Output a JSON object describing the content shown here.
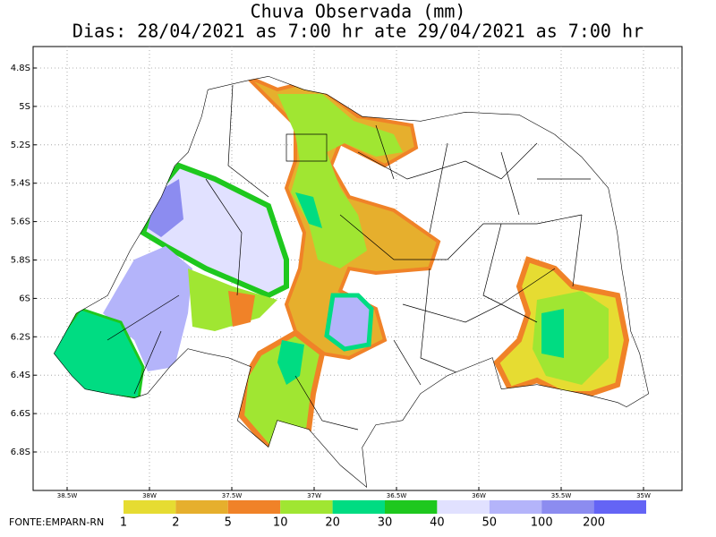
{
  "title": "Chuva Observada (mm)",
  "subtitle": "Dias: 28/04/2021 as 7:00 hr ate 29/04/2021 as 7:00 hr",
  "lat_labels": [
    "4.8S",
    "5S",
    "5.2S",
    "5.4S",
    "5.6S",
    "5.8S",
    "6S",
    "6.2S",
    "6.4S",
    "6.6S",
    "6.8S"
  ],
  "lon_labels": [
    "38.5W",
    "38W",
    "37.5W",
    "37W",
    "36.5W",
    "36W",
    "35.5W",
    "35W"
  ],
  "legend": {
    "labels": [
      "1",
      "2",
      "5",
      "10",
      "20",
      "30",
      "40",
      "50",
      "100",
      "200"
    ],
    "colors": [
      "#e6dc32",
      "#e6af2d",
      "#f08228",
      "#a0e632",
      "#00dc82",
      "#1ec81e",
      "#e1e1ff",
      "#b4b4fa",
      "#8c8cf0",
      "#6464f5"
    ]
  },
  "source": "FONTE:EMPARN-RN"
}
